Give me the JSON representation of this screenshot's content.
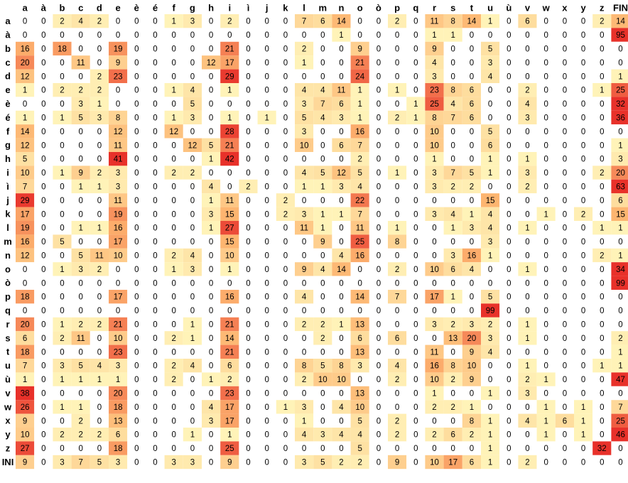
{
  "chart_data": {
    "type": "heatmap",
    "columns": [
      "a",
      "à",
      "b",
      "c",
      "d",
      "e",
      "è",
      "é",
      "f",
      "g",
      "h",
      "i",
      "ì",
      "j",
      "k",
      "l",
      "m",
      "n",
      "o",
      "ò",
      "p",
      "q",
      "r",
      "s",
      "t",
      "u",
      "ù",
      "v",
      "w",
      "x",
      "y",
      "z",
      "FIN"
    ],
    "rows": [
      "a",
      "à",
      "b",
      "c",
      "d",
      "e",
      "è",
      "é",
      "f",
      "g",
      "h",
      "i",
      "ì",
      "j",
      "k",
      "l",
      "m",
      "n",
      "o",
      "ò",
      "p",
      "q",
      "r",
      "s",
      "t",
      "u",
      "ù",
      "v",
      "w",
      "x",
      "y",
      "z",
      "INI"
    ],
    "values": [
      [
        0,
        0,
        2,
        4,
        2,
        0,
        0,
        0,
        1,
        3,
        0,
        2,
        0,
        0,
        0,
        7,
        6,
        14,
        0,
        0,
        2,
        0,
        11,
        8,
        14,
        1,
        0,
        6,
        0,
        0,
        0,
        2,
        14
      ],
      [
        0,
        0,
        0,
        0,
        0,
        0,
        0,
        0,
        0,
        0,
        0,
        0,
        0,
        0,
        0,
        0,
        0,
        1,
        0,
        0,
        0,
        0,
        1,
        1,
        0,
        0,
        0,
        0,
        0,
        0,
        0,
        0,
        95
      ],
      [
        16,
        0,
        18,
        0,
        0,
        19,
        0,
        0,
        0,
        0,
        0,
        21,
        0,
        0,
        0,
        2,
        0,
        0,
        9,
        0,
        0,
        0,
        9,
        0,
        0,
        5,
        0,
        0,
        0,
        0,
        0,
        0,
        0
      ],
      [
        20,
        0,
        0,
        11,
        0,
        9,
        0,
        0,
        0,
        0,
        12,
        17,
        0,
        0,
        0,
        1,
        0,
        0,
        21,
        0,
        0,
        0,
        4,
        0,
        0,
        3,
        0,
        0,
        0,
        0,
        0,
        0,
        0
      ],
      [
        12,
        0,
        0,
        0,
        2,
        23,
        0,
        0,
        0,
        0,
        0,
        29,
        0,
        0,
        0,
        0,
        0,
        0,
        24,
        0,
        0,
        0,
        3,
        0,
        0,
        4,
        0,
        0,
        0,
        0,
        0,
        0,
        1
      ],
      [
        1,
        0,
        2,
        2,
        2,
        0,
        0,
        0,
        1,
        4,
        0,
        1,
        0,
        0,
        0,
        4,
        4,
        11,
        1,
        0,
        1,
        0,
        23,
        8,
        6,
        0,
        0,
        2,
        0,
        0,
        0,
        1,
        25
      ],
      [
        0,
        0,
        0,
        3,
        1,
        0,
        0,
        0,
        0,
        5,
        0,
        0,
        0,
        0,
        0,
        3,
        7,
        6,
        1,
        0,
        0,
        1,
        25,
        4,
        6,
        0,
        0,
        4,
        0,
        0,
        0,
        0,
        32
      ],
      [
        1,
        0,
        1,
        5,
        3,
        8,
        0,
        0,
        1,
        3,
        0,
        1,
        0,
        1,
        0,
        5,
        4,
        3,
        1,
        0,
        2,
        1,
        8,
        7,
        6,
        0,
        0,
        3,
        0,
        0,
        0,
        0,
        36
      ],
      [
        14,
        0,
        0,
        0,
        0,
        12,
        0,
        0,
        12,
        0,
        0,
        28,
        0,
        0,
        0,
        3,
        0,
        0,
        16,
        0,
        0,
        0,
        10,
        0,
        0,
        5,
        0,
        0,
        0,
        0,
        0,
        0,
        0
      ],
      [
        12,
        0,
        0,
        0,
        0,
        11,
        0,
        0,
        0,
        12,
        5,
        21,
        0,
        0,
        0,
        10,
        0,
        6,
        7,
        0,
        0,
        0,
        10,
        0,
        0,
        6,
        0,
        0,
        0,
        0,
        0,
        0,
        1
      ],
      [
        5,
        0,
        0,
        0,
        0,
        41,
        0,
        0,
        0,
        0,
        1,
        42,
        0,
        0,
        0,
        0,
        0,
        0,
        2,
        0,
        0,
        0,
        1,
        0,
        0,
        1,
        0,
        1,
        0,
        0,
        0,
        0,
        3
      ],
      [
        10,
        0,
        1,
        9,
        2,
        3,
        0,
        0,
        2,
        2,
        0,
        0,
        0,
        0,
        0,
        4,
        5,
        12,
        5,
        0,
        1,
        0,
        3,
        7,
        5,
        1,
        0,
        3,
        0,
        0,
        0,
        2,
        20
      ],
      [
        7,
        0,
        0,
        1,
        1,
        3,
        0,
        0,
        0,
        0,
        4,
        0,
        2,
        0,
        0,
        1,
        1,
        3,
        4,
        0,
        0,
        0,
        3,
        2,
        2,
        0,
        0,
        2,
        0,
        0,
        0,
        0,
        63
      ],
      [
        29,
        0,
        0,
        0,
        0,
        11,
        0,
        0,
        0,
        0,
        1,
        11,
        0,
        0,
        2,
        0,
        0,
        0,
        22,
        0,
        0,
        0,
        0,
        0,
        0,
        15,
        0,
        0,
        0,
        0,
        0,
        0,
        6
      ],
      [
        17,
        0,
        0,
        0,
        0,
        19,
        0,
        0,
        0,
        0,
        3,
        15,
        0,
        0,
        2,
        3,
        1,
        1,
        7,
        0,
        0,
        0,
        3,
        4,
        1,
        4,
        0,
        0,
        1,
        0,
        2,
        0,
        15
      ],
      [
        19,
        0,
        0,
        1,
        1,
        16,
        0,
        0,
        0,
        0,
        1,
        27,
        0,
        0,
        0,
        11,
        1,
        0,
        11,
        0,
        1,
        0,
        0,
        1,
        3,
        4,
        0,
        1,
        0,
        0,
        0,
        1,
        1
      ],
      [
        16,
        0,
        5,
        0,
        0,
        17,
        0,
        0,
        0,
        0,
        0,
        15,
        0,
        0,
        0,
        0,
        9,
        0,
        25,
        0,
        8,
        0,
        0,
        0,
        0,
        3,
        0,
        0,
        0,
        0,
        0,
        0,
        0
      ],
      [
        12,
        0,
        0,
        5,
        11,
        10,
        0,
        0,
        2,
        4,
        0,
        10,
        0,
        0,
        0,
        0,
        0,
        4,
        16,
        0,
        0,
        0,
        0,
        3,
        16,
        1,
        0,
        0,
        0,
        0,
        0,
        2,
        1
      ],
      [
        0,
        0,
        1,
        3,
        2,
        0,
        0,
        0,
        1,
        3,
        0,
        1,
        0,
        0,
        0,
        9,
        4,
        14,
        0,
        0,
        2,
        0,
        10,
        6,
        4,
        0,
        0,
        1,
        0,
        0,
        0,
        0,
        34
      ],
      [
        0,
        0,
        0,
        0,
        0,
        0,
        0,
        0,
        0,
        0,
        0,
        0,
        0,
        0,
        0,
        0,
        0,
        0,
        0,
        0,
        0,
        0,
        0,
        0,
        0,
        0,
        0,
        0,
        0,
        0,
        0,
        0,
        99
      ],
      [
        18,
        0,
        0,
        0,
        0,
        17,
        0,
        0,
        0,
        0,
        0,
        16,
        0,
        0,
        0,
        4,
        0,
        0,
        14,
        0,
        7,
        0,
        17,
        1,
        0,
        5,
        0,
        0,
        0,
        0,
        0,
        0,
        0
      ],
      [
        0,
        0,
        0,
        0,
        0,
        0,
        0,
        0,
        0,
        0,
        0,
        0,
        0,
        0,
        0,
        0,
        0,
        0,
        0,
        0,
        0,
        0,
        0,
        0,
        0,
        99,
        0,
        0,
        0,
        0,
        0,
        0,
        0
      ],
      [
        20,
        0,
        1,
        2,
        2,
        21,
        0,
        0,
        0,
        1,
        0,
        21,
        0,
        0,
        0,
        2,
        2,
        1,
        13,
        0,
        0,
        0,
        3,
        2,
        3,
        2,
        0,
        1,
        0,
        0,
        0,
        0,
        0
      ],
      [
        6,
        0,
        2,
        11,
        0,
        10,
        0,
        0,
        2,
        1,
        0,
        14,
        0,
        0,
        0,
        0,
        2,
        0,
        6,
        0,
        6,
        0,
        0,
        13,
        20,
        3,
        0,
        1,
        0,
        0,
        0,
        0,
        2
      ],
      [
        18,
        0,
        0,
        0,
        0,
        23,
        0,
        0,
        0,
        0,
        0,
        21,
        0,
        0,
        0,
        0,
        0,
        0,
        13,
        0,
        0,
        0,
        11,
        0,
        9,
        4,
        0,
        0,
        0,
        0,
        0,
        0,
        1
      ],
      [
        7,
        0,
        3,
        5,
        4,
        3,
        0,
        0,
        2,
        4,
        0,
        6,
        0,
        0,
        0,
        8,
        5,
        8,
        3,
        0,
        4,
        0,
        16,
        8,
        10,
        0,
        0,
        1,
        0,
        0,
        0,
        1,
        1
      ],
      [
        1,
        0,
        1,
        1,
        1,
        1,
        0,
        0,
        2,
        0,
        1,
        2,
        0,
        0,
        0,
        2,
        10,
        10,
        0,
        0,
        2,
        0,
        10,
        2,
        9,
        0,
        0,
        2,
        1,
        0,
        0,
        0,
        47
      ],
      [
        38,
        0,
        0,
        0,
        0,
        20,
        0,
        0,
        0,
        0,
        0,
        23,
        0,
        0,
        0,
        0,
        0,
        0,
        13,
        0,
        0,
        0,
        1,
        0,
        0,
        1,
        0,
        3,
        0,
        0,
        0,
        0,
        0
      ],
      [
        26,
        0,
        1,
        1,
        0,
        18,
        0,
        0,
        0,
        0,
        4,
        17,
        0,
        0,
        1,
        3,
        0,
        4,
        10,
        0,
        0,
        0,
        2,
        2,
        1,
        0,
        0,
        0,
        1,
        0,
        1,
        0,
        7
      ],
      [
        9,
        0,
        0,
        2,
        0,
        13,
        0,
        0,
        0,
        0,
        3,
        17,
        0,
        0,
        0,
        1,
        0,
        0,
        5,
        0,
        2,
        0,
        0,
        0,
        8,
        1,
        0,
        4,
        1,
        6,
        1,
        0,
        25
      ],
      [
        10,
        0,
        2,
        2,
        2,
        6,
        0,
        0,
        0,
        1,
        0,
        1,
        0,
        0,
        0,
        4,
        3,
        4,
        4,
        0,
        2,
        0,
        2,
        6,
        2,
        1,
        0,
        0,
        1,
        0,
        1,
        0,
        46
      ],
      [
        27,
        0,
        0,
        0,
        0,
        18,
        0,
        0,
        0,
        0,
        0,
        25,
        0,
        0,
        0,
        0,
        0,
        0,
        5,
        0,
        0,
        0,
        0,
        0,
        0,
        1,
        0,
        0,
        0,
        0,
        0,
        32,
        0
      ],
      [
        9,
        0,
        3,
        7,
        5,
        3,
        0,
        0,
        3,
        3,
        0,
        9,
        0,
        0,
        0,
        3,
        5,
        2,
        2,
        0,
        9,
        0,
        10,
        17,
        6,
        1,
        0,
        2,
        0,
        0,
        0,
        0,
        0
      ]
    ]
  },
  "colors": {
    "zero": "#ffffff",
    "low": "#fff7bd",
    "mid": "#fdb570",
    "high": "#e8312a"
  }
}
